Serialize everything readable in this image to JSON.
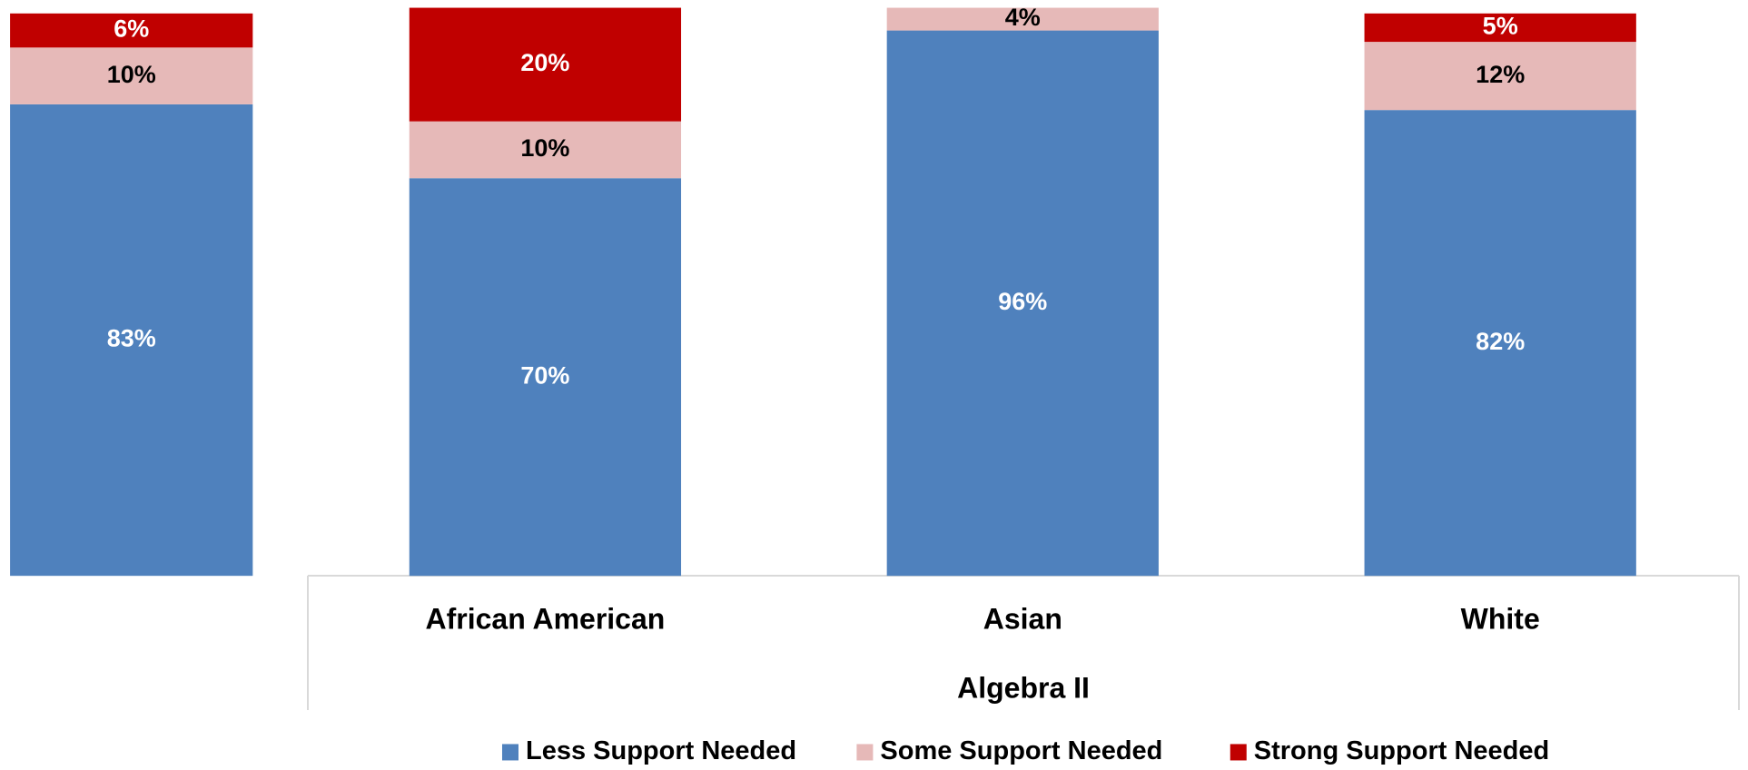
{
  "chart_data": {
    "type": "stacked_bar",
    "categories": [
      null,
      "African American",
      "Asian",
      "White"
    ],
    "group_label": "Algebra II",
    "ylim": [
      0,
      100
    ],
    "series": [
      {
        "name": "Less Support Needed",
        "color": "#4f81bd",
        "values": [
          83,
          70,
          96,
          82
        ],
        "value_labels": [
          "83%",
          "70%",
          "96%",
          "82%"
        ]
      },
      {
        "name": "Some Support Needed",
        "color": "#e6b9b8",
        "values": [
          10,
          10,
          4,
          12
        ],
        "value_labels": [
          "10%",
          "10%",
          "4%",
          "12%"
        ]
      },
      {
        "name": "Strong Support Needed",
        "color": "#c00000",
        "values": [
          6,
          20,
          null,
          5
        ],
        "value_labels": [
          "6%",
          "20%",
          null,
          "5%"
        ]
      }
    ]
  }
}
